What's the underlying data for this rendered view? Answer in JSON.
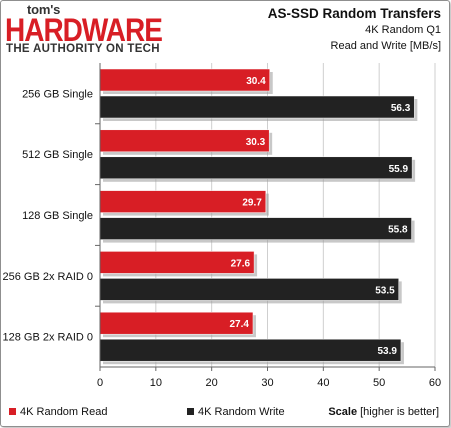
{
  "header": {
    "logo_small": "tom's",
    "logo_big": "HARDWARE",
    "logo_tagline": "THE AUTHORITY ON TECH",
    "title": "AS-SSD Random Transfers",
    "subtitle": "4K Random Q1",
    "unit": "Read and Write [MB/s]"
  },
  "footer": {
    "scale_bold": "Scale",
    "scale_note": "[higher is better]"
  },
  "colors": {
    "read": "#d81e25",
    "write": "#222222",
    "grid": "#cfcfcf"
  },
  "chart_data": {
    "type": "bar",
    "orientation": "horizontal",
    "categories": [
      "256 GB Single",
      "512 GB Single",
      "128 GB Single",
      "256 GB 2x RAID 0",
      "128 GB 2x RAID 0"
    ],
    "series": [
      {
        "name": "4K Random Read",
        "values": [
          30.4,
          30.3,
          29.7,
          27.6,
          27.4
        ]
      },
      {
        "name": "4K Random Write",
        "values": [
          56.3,
          55.9,
          55.8,
          53.5,
          53.9
        ]
      }
    ],
    "xlim": [
      0,
      60
    ],
    "xticks": [
      "0",
      "10",
      "20",
      "30",
      "40",
      "50",
      "60"
    ],
    "grid": true,
    "legend_position": "bottom-left"
  }
}
